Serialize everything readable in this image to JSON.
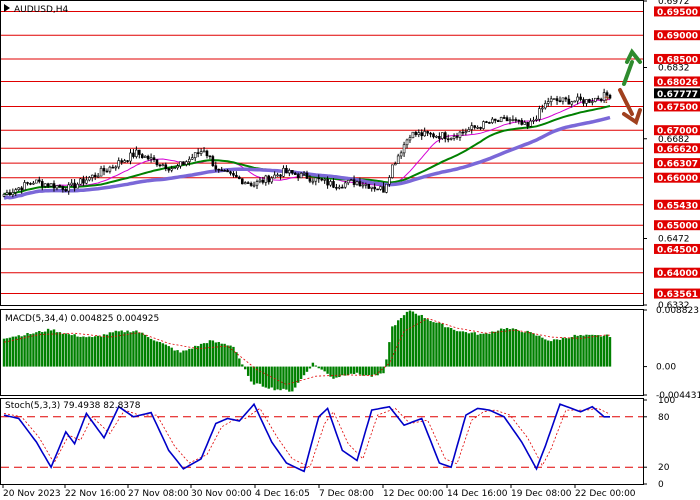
{
  "header": {
    "title": "AUDUSD,H4"
  },
  "macd_panel": {
    "title": "MACD(5,34,4) 0.004825 0.004925"
  },
  "stoch_panel": {
    "title": "Stoch(5,3,3) 79.4938 82.8378"
  },
  "arrows": {
    "question_mark": "?"
  },
  "colors": {
    "candles": "#000000",
    "ma_fast": "#d400d4",
    "ma_mid": "#008000",
    "ma_slow": "#7b68d8",
    "level": "#e00000",
    "histogram": "#008000",
    "signal": "#e00000",
    "stoch_main": "#0000c8",
    "stoch_signal": "#e00000",
    "arrow_up": "#2e8b2e",
    "arrow_down": "#a0401e"
  },
  "chart_data": {
    "type": "candlestick",
    "symbol": "AUDUSD",
    "timeframe": "H4",
    "price_range": [
      0.6332,
      0.6972
    ],
    "price_ticks": [
      0.6972,
      0.6832,
      0.6682,
      0.6472,
      0.6332
    ],
    "levels": [
      {
        "value": 0.695,
        "label": "0.69500"
      },
      {
        "value": 0.69,
        "label": "0.69000"
      },
      {
        "value": 0.685,
        "label": "0.68500"
      },
      {
        "value": 0.68026,
        "label": "0.68026"
      },
      {
        "value": 0.675,
        "label": "0.67500"
      },
      {
        "value": 0.67,
        "label": "0.67000"
      },
      {
        "value": 0.6662,
        "label": "0.66620"
      },
      {
        "value": 0.66307,
        "label": "0.66307"
      },
      {
        "value": 0.66,
        "label": "0.66000"
      },
      {
        "value": 0.6543,
        "label": "0.65430"
      },
      {
        "value": 0.65,
        "label": "0.65000"
      },
      {
        "value": 0.645,
        "label": "0.64500"
      },
      {
        "value": 0.64,
        "label": "0.64000"
      },
      {
        "value": 0.63561,
        "label": "0.63561"
      }
    ],
    "current_price": {
      "value": 0.67777,
      "label": "0.67777"
    },
    "x_labels": [
      "20 Nov 2023",
      "22 Nov 16:00",
      "27 Nov 08:00",
      "30 Nov 00:00",
      "4 Dec 16:05",
      "7 Dec 08:00",
      "12 Dec 00:00",
      "14 Dec 16:00",
      "19 Dec 08:00",
      "22 Dec 00:00"
    ],
    "close_anchors": [
      [
        0,
        0.6565
      ],
      [
        10,
        0.6592
      ],
      [
        22,
        0.6578
      ],
      [
        35,
        0.6618
      ],
      [
        45,
        0.6652
      ],
      [
        50,
        0.6638
      ],
      [
        58,
        0.6618
      ],
      [
        68,
        0.666
      ],
      [
        73,
        0.6612
      ],
      [
        85,
        0.6586
      ],
      [
        95,
        0.6612
      ],
      [
        103,
        0.6602
      ],
      [
        112,
        0.6585
      ],
      [
        120,
        0.6592
      ],
      [
        129,
        0.6575
      ],
      [
        132,
        0.6625
      ],
      [
        138,
        0.6692
      ],
      [
        152,
        0.6688
      ],
      [
        165,
        0.6716
      ],
      [
        172,
        0.6722
      ],
      [
        178,
        0.6706
      ],
      [
        185,
        0.6762
      ],
      [
        198,
        0.6762
      ],
      [
        206,
        0.6775
      ]
    ],
    "macd": {
      "range": [
        -0.004431,
        0.008823
      ],
      "ticks": [
        0.008823,
        0.0,
        -0.004431
      ],
      "tick_labels": [
        "0.008823",
        "0.00",
        "-0.004431"
      ],
      "hist_anchors": [
        [
          0,
          0.0045
        ],
        [
          10,
          0.0052
        ],
        [
          16,
          0.0058
        ],
        [
          22,
          0.005
        ],
        [
          30,
          0.0045
        ],
        [
          38,
          0.0054
        ],
        [
          45,
          0.0056
        ],
        [
          52,
          0.004
        ],
        [
          60,
          0.0022
        ],
        [
          70,
          0.004
        ],
        [
          78,
          0.0032
        ],
        [
          84,
          -0.0025
        ],
        [
          92,
          -0.0035
        ],
        [
          98,
          -0.0038
        ],
        [
          105,
          0.0005
        ],
        [
          112,
          -0.0018
        ],
        [
          118,
          -0.001
        ],
        [
          125,
          -0.0015
        ],
        [
          129,
          -0.0012
        ],
        [
          132,
          0.0062
        ],
        [
          138,
          0.0088
        ],
        [
          146,
          0.007
        ],
        [
          155,
          0.0055
        ],
        [
          163,
          0.005
        ],
        [
          170,
          0.006
        ],
        [
          178,
          0.0054
        ],
        [
          186,
          0.004
        ],
        [
          194,
          0.0048
        ],
        [
          204,
          0.0048
        ]
      ],
      "signal_anchors": [
        [
          0,
          0.0038
        ],
        [
          12,
          0.005
        ],
        [
          24,
          0.0052
        ],
        [
          36,
          0.0046
        ],
        [
          46,
          0.0053
        ],
        [
          56,
          0.0036
        ],
        [
          66,
          0.0028
        ],
        [
          76,
          0.0032
        ],
        [
          86,
          -0.0005
        ],
        [
          96,
          -0.0028
        ],
        [
          106,
          -0.0015
        ],
        [
          116,
          -0.0013
        ],
        [
          126,
          -0.0014
        ],
        [
          131,
          0.0005
        ],
        [
          136,
          0.0055
        ],
        [
          144,
          0.0075
        ],
        [
          154,
          0.006
        ],
        [
          164,
          0.0052
        ],
        [
          174,
          0.0057
        ],
        [
          186,
          0.0046
        ],
        [
          196,
          0.0044
        ],
        [
          204,
          0.0049
        ]
      ]
    },
    "stoch": {
      "range": [
        0,
        100
      ],
      "ticks": [
        100,
        80,
        20,
        0
      ],
      "levels": [
        80,
        20
      ],
      "main_anchors": [
        [
          0,
          82
        ],
        [
          5,
          78
        ],
        [
          11,
          50
        ],
        [
          16,
          20
        ],
        [
          21,
          62
        ],
        [
          24,
          48
        ],
        [
          28,
          84
        ],
        [
          34,
          55
        ],
        [
          39,
          92
        ],
        [
          44,
          80
        ],
        [
          50,
          85
        ],
        [
          56,
          40
        ],
        [
          61,
          18
        ],
        [
          67,
          30
        ],
        [
          72,
          72
        ],
        [
          76,
          78
        ],
        [
          80,
          75
        ],
        [
          85,
          95
        ],
        [
          91,
          50
        ],
        [
          96,
          25
        ],
        [
          102,
          15
        ],
        [
          107,
          80
        ],
        [
          110,
          90
        ],
        [
          115,
          40
        ],
        [
          120,
          28
        ],
        [
          125,
          88
        ],
        [
          131,
          92
        ],
        [
          136,
          70
        ],
        [
          142,
          78
        ],
        [
          148,
          25
        ],
        [
          152,
          20
        ],
        [
          157,
          82
        ],
        [
          161,
          90
        ],
        [
          165,
          88
        ],
        [
          170,
          80
        ],
        [
          176,
          50
        ],
        [
          181,
          18
        ],
        [
          184,
          45
        ],
        [
          189,
          95
        ],
        [
          196,
          86
        ],
        [
          200,
          92
        ],
        [
          204,
          80
        ]
      ],
      "signal_anchors": [
        [
          0,
          84
        ],
        [
          6,
          80
        ],
        [
          12,
          55
        ],
        [
          17,
          25
        ],
        [
          22,
          58
        ],
        [
          26,
          52
        ],
        [
          30,
          80
        ],
        [
          36,
          60
        ],
        [
          41,
          88
        ],
        [
          46,
          82
        ],
        [
          52,
          82
        ],
        [
          58,
          45
        ],
        [
          63,
          25
        ],
        [
          69,
          35
        ],
        [
          74,
          68
        ],
        [
          78,
          76
        ],
        [
          82,
          78
        ],
        [
          87,
          90
        ],
        [
          93,
          55
        ],
        [
          98,
          30
        ],
        [
          104,
          20
        ],
        [
          109,
          72
        ],
        [
          112,
          86
        ],
        [
          117,
          48
        ],
        [
          122,
          30
        ],
        [
          127,
          82
        ],
        [
          133,
          90
        ],
        [
          138,
          72
        ],
        [
          144,
          76
        ],
        [
          150,
          30
        ],
        [
          154,
          24
        ],
        [
          159,
          76
        ],
        [
          163,
          86
        ],
        [
          167,
          88
        ],
        [
          172,
          82
        ],
        [
          178,
          55
        ],
        [
          183,
          22
        ],
        [
          186,
          42
        ],
        [
          191,
          88
        ],
        [
          198,
          88
        ],
        [
          202,
          90
        ],
        [
          206,
          83
        ]
      ]
    }
  }
}
